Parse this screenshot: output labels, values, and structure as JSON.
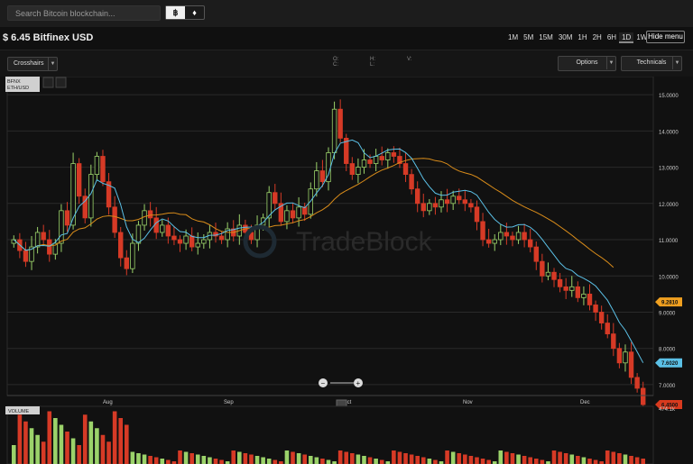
{
  "search": {
    "placeholder": "Search Bitcoin blockchain..."
  },
  "currency_toggle": [
    {
      "label": "฿",
      "active": true
    },
    {
      "label": "♦",
      "active": false
    }
  ],
  "header": {
    "title": "$ 6.45 Bitfinex USD"
  },
  "timeframes": [
    {
      "label": "1M",
      "active": false
    },
    {
      "label": "5M",
      "active": false
    },
    {
      "label": "15M",
      "active": false
    },
    {
      "label": "30M",
      "active": false
    },
    {
      "label": "1H",
      "active": false
    },
    {
      "label": "2H",
      "active": false
    },
    {
      "label": "6H",
      "active": false
    },
    {
      "label": "1D",
      "active": true
    },
    {
      "label": "1W",
      "active": false
    }
  ],
  "hide_menu_label": "Hide menu",
  "toolbar": {
    "crosshairs_label": "Crosshairs",
    "options_label": "Options",
    "technicals_label": "Technicals"
  },
  "ohlc": {
    "o": "O:",
    "c": "C:",
    "h": "H:",
    "l": "L:",
    "v": "V:"
  },
  "chart": {
    "symbol_line1": "BFNX",
    "symbol_line2": "ETH/USD",
    "watermark": "TradeBlock",
    "volume_label": "VOLUME",
    "volume_max": "474.1k",
    "x_labels": [
      "Aug",
      "Sep",
      "Oct",
      "Nov",
      "Dec"
    ],
    "y_labels": [
      "15.0000",
      "14.0000",
      "13.0000",
      "12.0000",
      "11.0000",
      "10.0000",
      "9.0000",
      "8.0000",
      "7.0000"
    ],
    "badges": [
      {
        "label": "9.2810",
        "value": 9.281,
        "color": "#f0a020"
      },
      {
        "label": "7.6020",
        "value": 7.602,
        "color": "#5bc0e6"
      },
      {
        "label": "6.4500",
        "value": 6.45,
        "color": "#d83a1e"
      }
    ],
    "colors": {
      "up": "#9bd26a",
      "down": "#d63a26",
      "fast_ma": "#5bc0e6",
      "slow_ma": "#d98c1a",
      "grid": "#2a2a2a"
    }
  },
  "chart_data": {
    "type": "candlestick",
    "x_ticks": [
      "Aug",
      "Sep",
      "Oct",
      "Nov",
      "Dec"
    ],
    "ylim": [
      6.7,
      15.5
    ],
    "close": [
      11.0,
      10.7,
      10.4,
      10.8,
      11.2,
      11.0,
      10.6,
      10.9,
      11.8,
      11.4,
      13.1,
      12.2,
      11.6,
      12.8,
      13.3,
      12.6,
      11.9,
      11.2,
      10.5,
      10.2,
      10.9,
      11.4,
      11.8,
      11.6,
      11.2,
      11.4,
      11.1,
      11.0,
      10.9,
      11.1,
      10.8,
      10.9,
      11.0,
      11.2,
      11.1,
      11.0,
      11.3,
      11.1,
      11.4,
      11.2,
      11.0,
      11.4,
      11.6,
      12.3,
      12.0,
      11.5,
      11.8,
      11.6,
      11.9,
      11.7,
      12.4,
      12.9,
      12.6,
      13.4,
      14.6,
      13.8,
      13.1,
      12.8,
      13.0,
      13.2,
      13.1,
      13.3,
      13.2,
      13.4,
      13.3,
      13.1,
      12.8,
      12.4,
      12.0,
      11.8,
      12.0,
      11.9,
      12.1,
      12.0,
      12.2,
      12.1,
      12.0,
      11.9,
      11.5,
      11.0,
      10.9,
      11.0,
      11.2,
      11.1,
      11.0,
      11.2,
      11.0,
      10.8,
      10.4,
      10.0,
      10.1,
      9.9,
      9.7,
      9.6,
      9.7,
      9.4,
      9.5,
      9.2,
      9.0,
      8.7,
      8.4,
      8.0,
      7.6,
      7.9,
      7.2,
      6.9,
      6.45
    ],
    "series": [
      {
        "name": "fast MA",
        "end_value": 7.602
      },
      {
        "name": "slow MA",
        "end_value": 9.281
      }
    ],
    "volume_max": "474.1k"
  }
}
